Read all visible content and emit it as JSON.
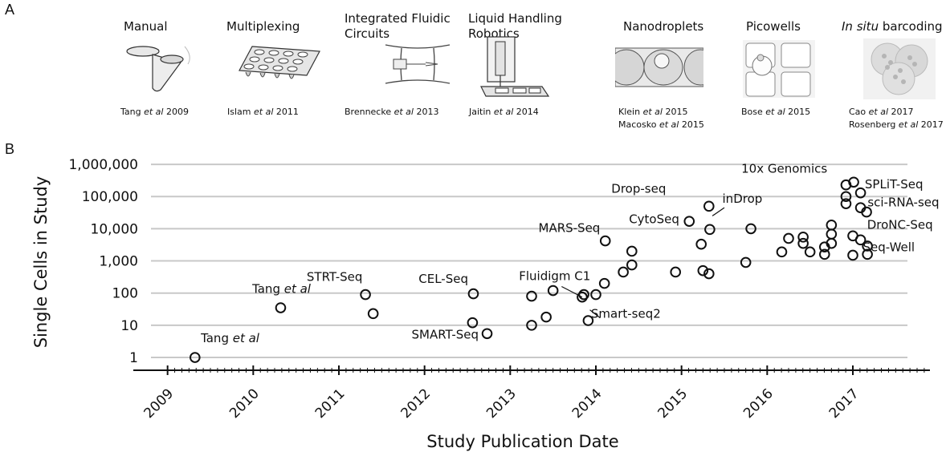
{
  "panels": {
    "a": "A",
    "b": "B"
  },
  "technologies": [
    {
      "title_lines": [
        "Manual"
      ],
      "title_italic": "",
      "citations": [
        {
          "author": "Tang",
          "etal": "et al",
          "year": "2009"
        }
      ]
    },
    {
      "title_lines": [
        "Multiplexing"
      ],
      "title_italic": "",
      "citations": [
        {
          "author": "Islam",
          "etal": "et al",
          "year": "2011"
        }
      ]
    },
    {
      "title_lines": [
        "Integrated Fluidic",
        "Circuits"
      ],
      "title_italic": "",
      "citations": [
        {
          "author": "Brennecke",
          "etal": "et al",
          "year": "2013"
        }
      ]
    },
    {
      "title_lines": [
        "Liquid Handling",
        "Robotics"
      ],
      "title_italic": "",
      "citations": [
        {
          "author": "Jaitin",
          "etal": "et al",
          "year": "2014"
        }
      ]
    },
    {
      "title_lines": [
        "Nanodroplets"
      ],
      "title_italic": "",
      "citations": [
        {
          "author": "Klein",
          "etal": "et al",
          "year": "2015"
        },
        {
          "author": "Macosko",
          "etal": "et al",
          "year": "2015"
        }
      ]
    },
    {
      "title_lines": [
        "Picowells"
      ],
      "title_italic": "",
      "citations": [
        {
          "author": "Bose",
          "etal": "et al",
          "year": "2015"
        }
      ]
    },
    {
      "title_lines": [
        "barcoding"
      ],
      "title_italic": "In situ",
      "citations": [
        {
          "author": "Cao",
          "etal": "et al",
          "year": "2017"
        },
        {
          "author": "Rosenberg",
          "etal": "et al",
          "year": "2017"
        }
      ]
    }
  ],
  "chart_data": {
    "type": "scatter",
    "xlabel": "Study Publication Date",
    "ylabel": "Single Cells in Study",
    "x_ticks": [
      "2009",
      "2010",
      "2011",
      "2012",
      "2013",
      "2014",
      "2015",
      "2016",
      "2017"
    ],
    "y_scale": "log",
    "y_ticks": [
      1,
      10,
      100,
      1000,
      10000,
      100000,
      1000000
    ],
    "y_tick_labels": [
      "1",
      "10",
      "100",
      "1,000",
      "10,000",
      "100,000",
      "1,000,000"
    ],
    "xlim": [
      2008.6,
      2017.9
    ],
    "ylim": [
      0.4,
      2000000
    ],
    "grid": "horizontal",
    "points": [
      {
        "x": 2009.32,
        "y": 1
      },
      {
        "x": 2010.32,
        "y": 35
      },
      {
        "x": 2011.31,
        "y": 90
      },
      {
        "x": 2011.4,
        "y": 23
      },
      {
        "x": 2012.56,
        "y": 12
      },
      {
        "x": 2012.57,
        "y": 95
      },
      {
        "x": 2012.73,
        "y": 5.5
      },
      {
        "x": 2013.25,
        "y": 80
      },
      {
        "x": 2013.25,
        "y": 10
      },
      {
        "x": 2013.42,
        "y": 18
      },
      {
        "x": 2013.5,
        "y": 120
      },
      {
        "x": 2013.84,
        "y": 75
      },
      {
        "x": 2013.86,
        "y": 90
      },
      {
        "x": 2013.91,
        "y": 14
      },
      {
        "x": 2014.0,
        "y": 90
      },
      {
        "x": 2014.1,
        "y": 200
      },
      {
        "x": 2014.11,
        "y": 4200
      },
      {
        "x": 2014.32,
        "y": 450
      },
      {
        "x": 2014.42,
        "y": 2000
      },
      {
        "x": 2014.42,
        "y": 750
      },
      {
        "x": 2014.93,
        "y": 450
      },
      {
        "x": 2015.09,
        "y": 17000
      },
      {
        "x": 2015.23,
        "y": 3300
      },
      {
        "x": 2015.25,
        "y": 500
      },
      {
        "x": 2015.32,
        "y": 400
      },
      {
        "x": 2015.32,
        "y": 50000
      },
      {
        "x": 2015.33,
        "y": 9500
      },
      {
        "x": 2015.75,
        "y": 900
      },
      {
        "x": 2015.81,
        "y": 10000
      },
      {
        "x": 2016.17,
        "y": 1900
      },
      {
        "x": 2016.25,
        "y": 5000
      },
      {
        "x": 2016.42,
        "y": 3500
      },
      {
        "x": 2016.42,
        "y": 5500
      },
      {
        "x": 2016.5,
        "y": 1900
      },
      {
        "x": 2016.67,
        "y": 2700
      },
      {
        "x": 2016.67,
        "y": 1600
      },
      {
        "x": 2016.75,
        "y": 13000
      },
      {
        "x": 2016.75,
        "y": 6800
      },
      {
        "x": 2016.75,
        "y": 3500
      },
      {
        "x": 2016.92,
        "y": 230000
      },
      {
        "x": 2016.92,
        "y": 100000
      },
      {
        "x": 2016.92,
        "y": 60000
      },
      {
        "x": 2017.01,
        "y": 280000
      },
      {
        "x": 2017.0,
        "y": 6000
      },
      {
        "x": 2017.0,
        "y": 1500
      },
      {
        "x": 2017.09,
        "y": 130000
      },
      {
        "x": 2017.09,
        "y": 45000
      },
      {
        "x": 2017.09,
        "y": 4500
      },
      {
        "x": 2017.16,
        "y": 33000
      },
      {
        "x": 2017.17,
        "y": 2900
      },
      {
        "x": 2017.17,
        "y": 1600
      }
    ],
    "annotations": [
      {
        "label": "Tang",
        "italic": " et al",
        "x": 2009.73,
        "y": 3.0
      },
      {
        "label": "Tang",
        "italic": " et al",
        "x": 2010.33,
        "y": 100
      },
      {
        "label": "STRT-Seq",
        "italic": "",
        "x": 2010.95,
        "y": 240
      },
      {
        "label": "CEL-Seq",
        "italic": "",
        "x": 2012.22,
        "y": 210
      },
      {
        "label": "SMART-Seq",
        "italic": "",
        "x": 2012.24,
        "y": 3.8
      },
      {
        "label": "Fluidigm C1",
        "italic": "",
        "x": 2013.52,
        "y": 250
      },
      {
        "label": "Smart-seq2",
        "italic": "",
        "x": 2014.35,
        "y": 17
      },
      {
        "label": "MARS-Seq",
        "italic": "",
        "x": 2013.69,
        "y": 8000
      },
      {
        "label": "CytoSeq",
        "italic": "",
        "x": 2014.68,
        "y": 15000
      },
      {
        "label": "Drop-seq",
        "italic": "",
        "x": 2014.5,
        "y": 130000
      },
      {
        "label": "inDrop",
        "italic": "",
        "x": 2015.71,
        "y": 65000
      },
      {
        "label": "10x Genomics",
        "italic": "",
        "x": 2016.2,
        "y": 550000
      },
      {
        "label": "SPLiT-Seq",
        "italic": "",
        "x": 2017.48,
        "y": 180000
      },
      {
        "label": "sci-RNA-seq",
        "italic": "",
        "x": 2017.59,
        "y": 50000
      },
      {
        "label": "DroNC-Seq",
        "italic": "",
        "x": 2017.55,
        "y": 10000
      },
      {
        "label": "Seq-Well",
        "italic": "",
        "x": 2017.42,
        "y": 2000
      }
    ]
  }
}
